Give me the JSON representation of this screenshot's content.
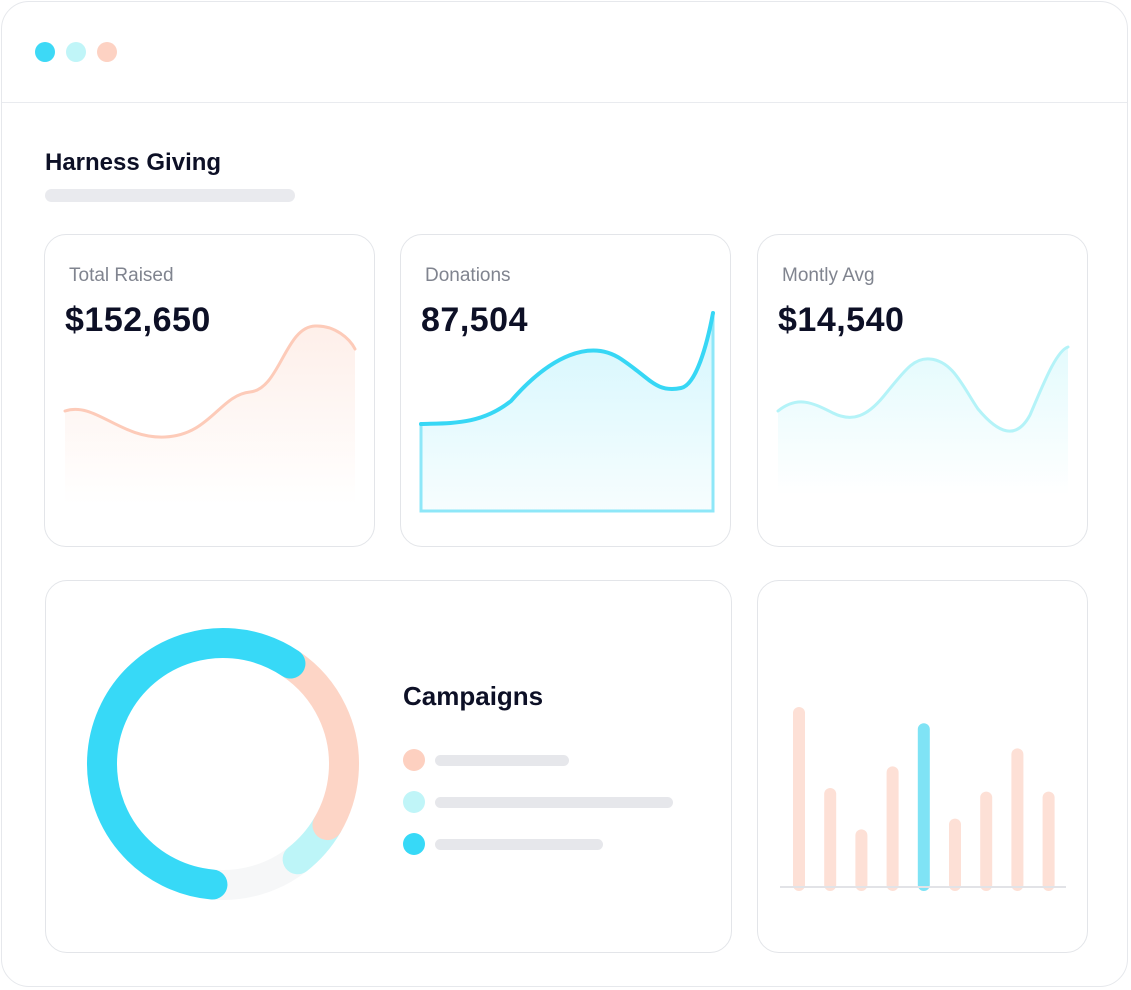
{
  "window": {
    "controls": [
      {
        "name": "close",
        "color": "#3dd9f6"
      },
      {
        "name": "minimize",
        "color": "#c0f5f8"
      },
      {
        "name": "maximize",
        "color": "#fdd2c3"
      }
    ]
  },
  "header": {
    "title": "Harness Giving"
  },
  "stats": [
    {
      "label": "Total Raised",
      "value": "$152,650",
      "color": "#fdcbb9"
    },
    {
      "label": "Donations",
      "value": "87,504",
      "color": "#37d7f5"
    },
    {
      "label": "Montly Avg",
      "value": "$14,540",
      "color": "#b4f3f8"
    }
  ],
  "campaigns": {
    "title": "Campaigns",
    "donut_segments": [
      {
        "color": "#37d9f7",
        "share": 0.58
      },
      {
        "color": "#fdd5c6",
        "share": 0.24
      },
      {
        "color": "#bdf5f8",
        "share": 0.06
      },
      {
        "color": "#f6f7f8",
        "share": 0.12
      }
    ],
    "legend": [
      {
        "color": "#fdd0c0"
      },
      {
        "color": "#c0f5f8"
      },
      {
        "color": "#37d9f7"
      }
    ]
  },
  "bars": {
    "values": [
      100,
      55,
      32,
      67,
      91,
      38,
      53,
      77,
      53
    ],
    "highlight_index": 4,
    "base_color": "#fde0d6",
    "highlight_color": "#7fe3f5"
  }
}
